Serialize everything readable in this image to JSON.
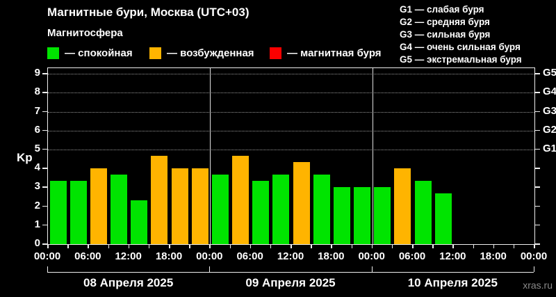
{
  "header": {
    "title": "Магнитные бури, Москва (UTC+03)",
    "subtitle": "Магнитосфера",
    "legend": [
      {
        "label": "— спокойная",
        "color": "#00e400",
        "key": "quiet"
      },
      {
        "label": "— возбужденная",
        "color": "#ffb400",
        "key": "excited"
      },
      {
        "label": "— магнитная буря",
        "color": "#fb0000",
        "key": "storm"
      }
    ],
    "g_legend": [
      "G1 — слабая буря",
      "G2 — средняя буря",
      "G3 — сильная буря",
      "G4 — очень сильная буря",
      "G5 — экстремальная буря"
    ]
  },
  "watermark": "xras.ru",
  "chart_data": {
    "type": "bar",
    "title": "Магнитные бури, Москва (UTC+03)",
    "ylabel": "Kp",
    "ylim": [
      0,
      9.3
    ],
    "yticks": [
      0,
      1,
      2,
      3,
      4,
      5,
      6,
      7,
      8,
      9
    ],
    "gridlines": [
      5,
      6,
      7,
      8,
      9
    ],
    "grid_style": "dotted",
    "legend_position": "top",
    "right_axis_labels": [
      {
        "value": 5,
        "label": "G1"
      },
      {
        "value": 6,
        "label": "G2"
      },
      {
        "value": 7,
        "label": "G3"
      },
      {
        "value": 8,
        "label": "G4"
      },
      {
        "value": 9,
        "label": "G5"
      }
    ],
    "hours_total": 72,
    "hours_per_bar": 3,
    "x_tick_step_hours": 3,
    "x_label_step_hours": 6,
    "x_tick_labels": [
      "00:00",
      "06:00",
      "12:00",
      "18:00",
      "00:00",
      "06:00",
      "12:00",
      "18:00",
      "00:00",
      "06:00",
      "12:00",
      "18:00",
      "00:00"
    ],
    "colors": {
      "quiet": "#00e400",
      "excited": "#ffb400",
      "storm": "#fb0000"
    },
    "days": [
      {
        "date": "08 Апреля 2025",
        "kp": [
          3.33,
          3.33,
          4.0,
          3.67,
          2.33,
          4.67,
          4.0,
          4.0
        ],
        "status": [
          "quiet",
          "quiet",
          "excited",
          "quiet",
          "quiet",
          "excited",
          "excited",
          "excited"
        ]
      },
      {
        "date": "09 Апреля 2025",
        "kp": [
          3.67,
          4.67,
          3.33,
          3.67,
          4.33,
          3.67,
          3.0,
          3.0
        ],
        "status": [
          "quiet",
          "excited",
          "quiet",
          "quiet",
          "excited",
          "quiet",
          "quiet",
          "quiet"
        ]
      },
      {
        "date": "10 Апреля 2025",
        "kp": [
          3.0,
          4.0,
          3.33,
          2.67,
          null,
          null,
          null,
          null
        ],
        "status": [
          "quiet",
          "excited",
          "quiet",
          "quiet",
          null,
          null,
          null,
          null
        ]
      }
    ]
  }
}
